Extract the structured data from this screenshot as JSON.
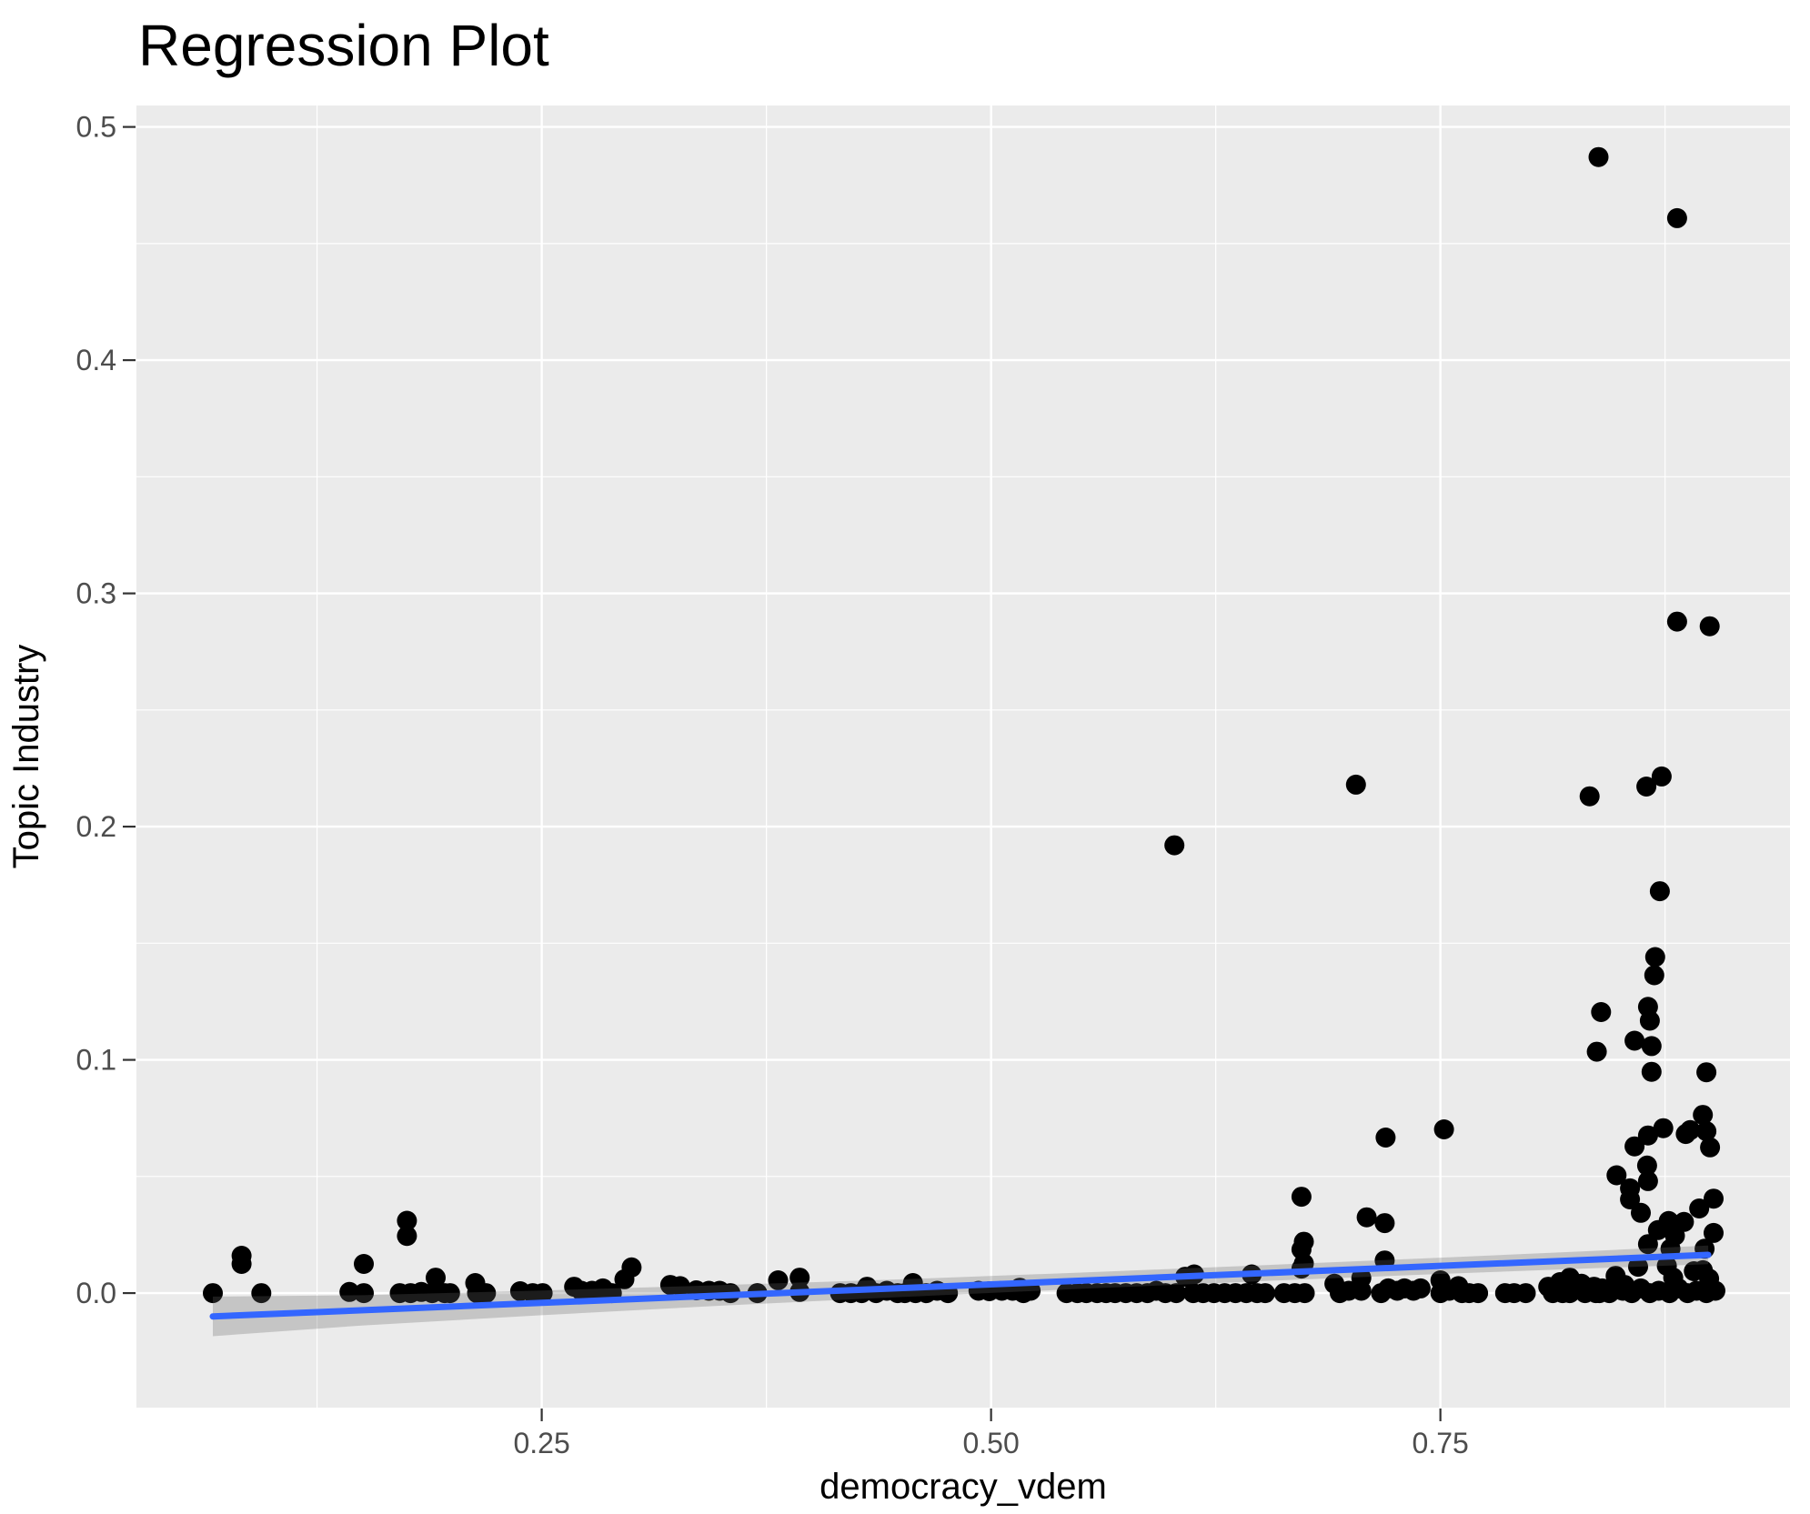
{
  "title": "Regression Plot",
  "chart_data": {
    "type": "scatter",
    "title": "Regression Plot",
    "xlabel": "democracy_vdem",
    "ylabel": "Topic Industry",
    "xlim": [
      0.0245,
      0.9445
    ],
    "ylim": [
      -0.0491,
      0.5092
    ],
    "x_ticks": [
      0.25,
      0.5,
      0.75
    ],
    "x_tick_labels": [
      "0.25",
      "0.50",
      "0.75"
    ],
    "x_minor_ticks": [
      0.125,
      0.375,
      0.625,
      0.875
    ],
    "y_ticks": [
      0.0,
      0.1,
      0.2,
      0.3,
      0.4,
      0.5
    ],
    "y_tick_labels": [
      "0.0",
      "0.1",
      "0.2",
      "0.3",
      "0.4",
      "0.5"
    ],
    "y_minor_ticks": [
      0.05,
      0.15,
      0.25,
      0.35,
      0.45
    ],
    "grid": true,
    "legend_position": "none",
    "colors": {
      "point": "#000000",
      "line": "#3366FF",
      "band": "rgba(102,102,102,0.28)",
      "panel": "#EBEBEB",
      "grid": "#FFFFFF",
      "tick_mark": "#333333",
      "tick_label": "#4D4D4D",
      "text": "#000000"
    },
    "regression_line": {
      "x": [
        0.067,
        0.899
      ],
      "y": [
        -0.01,
        0.0164
      ]
    },
    "confidence_band": {
      "x": [
        0.067,
        0.15,
        0.25,
        0.35,
        0.45,
        0.55,
        0.65,
        0.75,
        0.83,
        0.899
      ],
      "upper": [
        -0.0015,
        -0.0009,
        0.0011,
        0.0034,
        0.0059,
        0.0088,
        0.0119,
        0.0152,
        0.0179,
        0.0204
      ],
      "lower": [
        -0.0185,
        -0.0139,
        -0.0095,
        -0.0054,
        -0.0017,
        0.0018,
        0.0051,
        0.0082,
        0.0105,
        0.0124
      ]
    },
    "points": [
      [
        0.067,
        0
      ],
      [
        0.083,
        0.016
      ],
      [
        0.083,
        0.0125
      ],
      [
        0.094,
        0
      ],
      [
        0.143,
        0.0005
      ],
      [
        0.151,
        0
      ],
      [
        0.151,
        0.0125
      ],
      [
        0.171,
        0
      ],
      [
        0.175,
        0.031
      ],
      [
        0.175,
        0.0245
      ],
      [
        0.177,
        0
      ],
      [
        0.183,
        0.0005
      ],
      [
        0.189,
        0
      ],
      [
        0.191,
        0.0066
      ],
      [
        0.196,
        0
      ],
      [
        0.199,
        0
      ],
      [
        0.213,
        0.0043
      ],
      [
        0.214,
        0
      ],
      [
        0.219,
        0
      ],
      [
        0.238,
        0.0008
      ],
      [
        0.245,
        0
      ],
      [
        0.2505,
        0
      ],
      [
        0.268,
        0.0027
      ],
      [
        0.272,
        0.001
      ],
      [
        0.278,
        0.001
      ],
      [
        0.284,
        0.002
      ],
      [
        0.289,
        0
      ],
      [
        0.296,
        0.0059
      ],
      [
        0.3,
        0.011
      ],
      [
        0.3215,
        0.0035
      ],
      [
        0.327,
        0.003
      ],
      [
        0.336,
        0.0012
      ],
      [
        0.343,
        0.001
      ],
      [
        0.349,
        0.001
      ],
      [
        0.355,
        0
      ],
      [
        0.37,
        0
      ],
      [
        0.3815,
        0.0055
      ],
      [
        0.3935,
        0.0066
      ],
      [
        0.3935,
        0.0005
      ],
      [
        0.416,
        0
      ],
      [
        0.422,
        0
      ],
      [
        0.428,
        0
      ],
      [
        0.431,
        0.0027
      ],
      [
        0.436,
        0
      ],
      [
        0.442,
        0.001
      ],
      [
        0.448,
        0
      ],
      [
        0.452,
        0
      ],
      [
        0.4565,
        0.0043
      ],
      [
        0.458,
        0
      ],
      [
        0.464,
        0
      ],
      [
        0.47,
        0.001
      ],
      [
        0.476,
        0
      ],
      [
        0.493,
        0.001
      ],
      [
        0.499,
        0.0008
      ],
      [
        0.506,
        0.001
      ],
      [
        0.512,
        0.001
      ],
      [
        0.516,
        0.0023
      ],
      [
        0.518,
        0
      ],
      [
        0.522,
        0.001
      ],
      [
        0.542,
        0
      ],
      [
        0.548,
        0
      ],
      [
        0.553,
        0
      ],
      [
        0.559,
        0
      ],
      [
        0.564,
        0
      ],
      [
        0.569,
        0
      ],
      [
        0.575,
        0
      ],
      [
        0.581,
        0
      ],
      [
        0.587,
        0
      ],
      [
        0.592,
        0.001
      ],
      [
        0.597,
        0
      ],
      [
        0.602,
        0.192
      ],
      [
        0.603,
        0
      ],
      [
        0.608,
        0.007
      ],
      [
        0.6125,
        0
      ],
      [
        0.613,
        0.008
      ],
      [
        0.618,
        0
      ],
      [
        0.624,
        0
      ],
      [
        0.63,
        0
      ],
      [
        0.636,
        0
      ],
      [
        0.642,
        0
      ],
      [
        0.645,
        0.008
      ],
      [
        0.648,
        0
      ],
      [
        0.6525,
        0
      ],
      [
        0.663,
        0
      ],
      [
        0.669,
        0
      ],
      [
        0.6727,
        0.0413
      ],
      [
        0.6727,
        0.0187
      ],
      [
        0.6727,
        0.0105
      ],
      [
        0.674,
        0.022
      ],
      [
        0.674,
        0.0127
      ],
      [
        0.6745,
        0
      ],
      [
        0.691,
        0.004
      ],
      [
        0.694,
        0
      ],
      [
        0.699,
        0.001
      ],
      [
        0.703,
        0.218
      ],
      [
        0.706,
        0.0065
      ],
      [
        0.706,
        0.001
      ],
      [
        0.709,
        0.0325
      ],
      [
        0.717,
        0
      ],
      [
        0.719,
        0.03
      ],
      [
        0.719,
        0.014
      ],
      [
        0.7195,
        0.0667
      ],
      [
        0.721,
        0.002
      ],
      [
        0.726,
        0.001
      ],
      [
        0.73,
        0.002
      ],
      [
        0.735,
        0.001
      ],
      [
        0.739,
        0.002
      ],
      [
        0.75,
        0.0055
      ],
      [
        0.75,
        0
      ],
      [
        0.752,
        0.0702
      ],
      [
        0.755,
        0.001
      ],
      [
        0.76,
        0.003
      ],
      [
        0.762,
        0
      ],
      [
        0.766,
        0
      ],
      [
        0.771,
        0
      ],
      [
        0.786,
        0
      ],
      [
        0.791,
        0
      ],
      [
        0.7975,
        0
      ],
      [
        0.81,
        0.0027
      ],
      [
        0.8125,
        0
      ],
      [
        0.8165,
        0.0047
      ],
      [
        0.818,
        0
      ],
      [
        0.822,
        0.0066
      ],
      [
        0.822,
        0
      ],
      [
        0.8285,
        0.004
      ],
      [
        0.8305,
        0
      ],
      [
        0.8355,
        0.0027
      ],
      [
        0.8385,
        0
      ],
      [
        0.838,
        0.4871
      ],
      [
        0.8817,
        0.4609
      ],
      [
        0.8817,
        0.2879
      ],
      [
        0.8998,
        0.2859
      ],
      [
        0.8731,
        0.2215
      ],
      [
        0.8646,
        0.2172
      ],
      [
        0.833,
        0.213
      ],
      [
        0.8721,
        0.1723
      ],
      [
        0.8695,
        0.1441
      ],
      [
        0.869,
        0.1363
      ],
      [
        0.8394,
        0.1205
      ],
      [
        0.8655,
        0.1227
      ],
      [
        0.8665,
        0.1168
      ],
      [
        0.858,
        0.1082
      ],
      [
        0.837,
        0.1035
      ],
      [
        0.8675,
        0.1059
      ],
      [
        0.8675,
        0.0949
      ],
      [
        0.898,
        0.0947
      ],
      [
        0.896,
        0.0764
      ],
      [
        0.874,
        0.0707
      ],
      [
        0.8865,
        0.0682
      ],
      [
        0.889,
        0.0699
      ],
      [
        0.898,
        0.0694
      ],
      [
        0.8655,
        0.0676
      ],
      [
        0.858,
        0.0629
      ],
      [
        0.9,
        0.0625
      ],
      [
        0.865,
        0.0547
      ],
      [
        0.848,
        0.0505
      ],
      [
        0.8655,
        0.048
      ],
      [
        0.8555,
        0.0449
      ],
      [
        0.8555,
        0.0402
      ],
      [
        0.902,
        0.0405
      ],
      [
        0.894,
        0.0363
      ],
      [
        0.8615,
        0.0344
      ],
      [
        0.877,
        0.0309
      ],
      [
        0.8855,
        0.0305
      ],
      [
        0.871,
        0.027
      ],
      [
        0.8805,
        0.0246
      ],
      [
        0.902,
        0.0258
      ],
      [
        0.8655,
        0.021
      ],
      [
        0.878,
        0.019
      ],
      [
        0.897,
        0.019
      ],
      [
        0.86,
        0.0113
      ],
      [
        0.876,
        0.0117
      ],
      [
        0.896,
        0.0098
      ],
      [
        0.8795,
        0.0066
      ],
      [
        0.891,
        0.0094
      ],
      [
        0.8995,
        0.0062
      ],
      [
        0.8475,
        0.0074
      ],
      [
        0.8525,
        0.0035
      ],
      [
        0.8365,
        0
      ],
      [
        0.84,
        0.002
      ],
      [
        0.844,
        0
      ],
      [
        0.8515,
        0.001
      ],
      [
        0.8565,
        0
      ],
      [
        0.8615,
        0.002
      ],
      [
        0.8665,
        0
      ],
      [
        0.8715,
        0.001
      ],
      [
        0.8775,
        0
      ],
      [
        0.8825,
        0.002
      ],
      [
        0.8875,
        0
      ],
      [
        0.8925,
        0.001
      ],
      [
        0.898,
        0
      ],
      [
        0.903,
        0.001
      ]
    ]
  }
}
